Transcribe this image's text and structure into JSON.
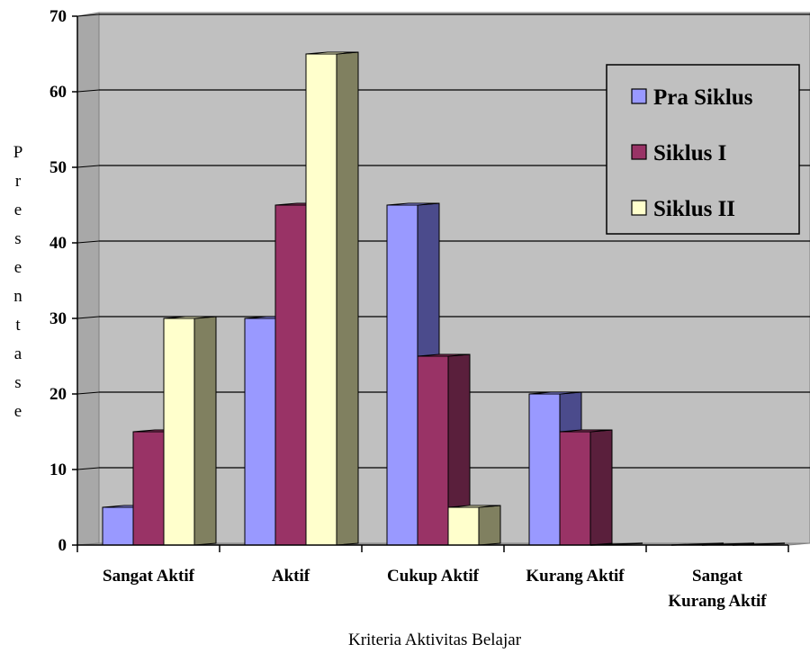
{
  "chart_data": {
    "type": "bar",
    "title": "",
    "xlabel": "Kriteria Aktivitas Belajar",
    "ylabel": "Presentase",
    "ylim": [
      0,
      70
    ],
    "yticks": [
      0,
      10,
      20,
      30,
      40,
      50,
      60,
      70
    ],
    "categories": [
      [
        "Sangat Aktif"
      ],
      [
        "Aktif"
      ],
      [
        "Cukup Aktif"
      ],
      [
        "Kurang Aktif"
      ],
      [
        "Sangat",
        "Kurang Aktif"
      ]
    ],
    "series": [
      {
        "name": "Pra Siklus",
        "values": [
          5,
          30,
          45,
          20,
          0
        ],
        "color": "#9999ff",
        "side": "#4b4b8c"
      },
      {
        "name": "Siklus I",
        "values": [
          15,
          45,
          25,
          15,
          0
        ],
        "color": "#993366",
        "side": "#5a1f3c"
      },
      {
        "name": "Siklus II",
        "values": [
          30,
          65,
          5,
          0,
          0
        ],
        "color": "#ffffcc",
        "side": "#808060"
      }
    ],
    "grid": true,
    "legend_position": "top-right",
    "plot_background": "#c0c0c0"
  }
}
